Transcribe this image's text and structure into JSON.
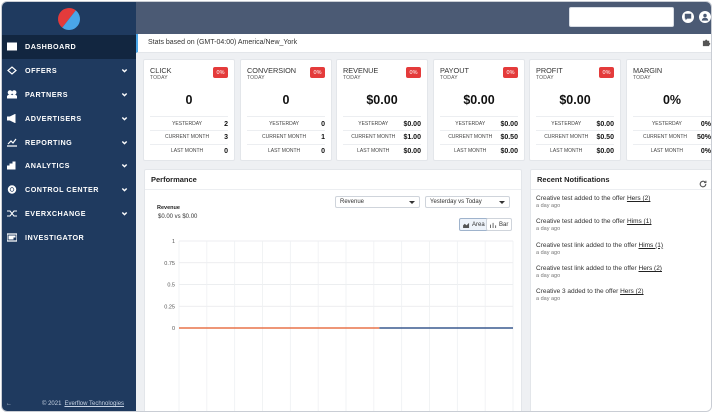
{
  "sidebar": {
    "items": [
      {
        "label": "DASHBOARD",
        "icon": "dashboard-icon",
        "chevron": false
      },
      {
        "label": "OFFERS",
        "icon": "offers-icon",
        "chevron": true
      },
      {
        "label": "PARTNERS",
        "icon": "partners-icon",
        "chevron": true
      },
      {
        "label": "ADVERTISERS",
        "icon": "advertisers-icon",
        "chevron": true
      },
      {
        "label": "REPORTING",
        "icon": "reporting-icon",
        "chevron": true
      },
      {
        "label": "ANALYTICS",
        "icon": "analytics-icon",
        "chevron": true
      },
      {
        "label": "CONTROL CENTER",
        "icon": "gear-icon",
        "chevron": true
      },
      {
        "label": "EVERXCHANGE",
        "icon": "shuffle-icon",
        "chevron": true
      },
      {
        "label": "INVESTIGATOR",
        "icon": "investigator-icon",
        "chevron": false
      }
    ],
    "copyright_prefix": "© 2021",
    "copyright_link": "Everflow Technologies"
  },
  "statsbar": {
    "text": "Stats based on (GMT-04:00) America/New_York"
  },
  "cards": [
    {
      "title": "CLICK",
      "period": "TODAY",
      "badge": "0%",
      "value": "0",
      "rows": [
        {
          "label": "YESTERDAY",
          "value": "2"
        },
        {
          "label": "CURRENT MONTH",
          "value": "3"
        },
        {
          "label": "LAST MONTH",
          "value": "0"
        }
      ]
    },
    {
      "title": "CONVERSION",
      "period": "TODAY",
      "badge": "0%",
      "value": "0",
      "rows": [
        {
          "label": "YESTERDAY",
          "value": "0"
        },
        {
          "label": "CURRENT MONTH",
          "value": "1"
        },
        {
          "label": "LAST MONTH",
          "value": "0"
        }
      ]
    },
    {
      "title": "REVENUE",
      "period": "TODAY",
      "badge": "0%",
      "value": "$0.00",
      "rows": [
        {
          "label": "YESTERDAY",
          "value": "$0.00"
        },
        {
          "label": "CURRENT MONTH",
          "value": "$1.00"
        },
        {
          "label": "LAST MONTH",
          "value": "$0.00"
        }
      ]
    },
    {
      "title": "PAYOUT",
      "period": "TODAY",
      "badge": "0%",
      "value": "$0.00",
      "rows": [
        {
          "label": "YESTERDAY",
          "value": "$0.00"
        },
        {
          "label": "CURRENT MONTH",
          "value": "$0.50"
        },
        {
          "label": "LAST MONTH",
          "value": "$0.00"
        }
      ]
    },
    {
      "title": "PROFIT",
      "period": "TODAY",
      "badge": "0%",
      "value": "$0.00",
      "rows": [
        {
          "label": "YESTERDAY",
          "value": "$0.00"
        },
        {
          "label": "CURRENT MONTH",
          "value": "$0.50"
        },
        {
          "label": "LAST MONTH",
          "value": "$0.00"
        }
      ]
    },
    {
      "title": "MARGIN",
      "period": "TODAY",
      "badge": "",
      "value": "0%",
      "rows": [
        {
          "label": "YESTERDAY",
          "value": "0%"
        },
        {
          "label": "CURRENT MONTH",
          "value": "50%"
        },
        {
          "label": "LAST MONTH",
          "value": "0%"
        }
      ]
    }
  ],
  "performance": {
    "title": "Performance",
    "metric_select": "Revenue",
    "compare_select": "Yesterday vs Today",
    "chart_title": "Revenue",
    "chart_subtitle": "$0.00 vs $0.00",
    "toggle_area": "Area",
    "toggle_bar": "Bar"
  },
  "chart_data": {
    "type": "line",
    "title": "Revenue",
    "yticks": [
      "1",
      "0.75",
      "0.5",
      "0.25",
      "0"
    ],
    "ylim": [
      0,
      1
    ],
    "grid": true,
    "series": [
      {
        "values": [
          0,
          0,
          0,
          0,
          0,
          0,
          0,
          0,
          0,
          0,
          0,
          0,
          0
        ],
        "color": "#e8734a"
      },
      {
        "values": [
          0,
          0,
          0,
          0,
          0,
          0,
          0
        ],
        "color": "#3a5a8f"
      }
    ]
  },
  "notifications": {
    "title": "Recent Notifications",
    "items": [
      {
        "text": "Creative test added to the offer ",
        "link": "Hers (2)",
        "time": "a day ago"
      },
      {
        "text": "Creative test added to the offer ",
        "link": "Hims (1)",
        "time": "a day ago"
      },
      {
        "text": "Creative test link added to the offer ",
        "link": "Hims (1)",
        "time": "a day ago"
      },
      {
        "text": "Creative test link added to the offer ",
        "link": "Hers (2)",
        "time": "a day ago"
      },
      {
        "text": "Creative 3 added to the offer ",
        "link": "Hers (2)",
        "time": "a day ago"
      }
    ]
  },
  "colors": {
    "sidebar": "#1f3a5f",
    "topbar": "#4b5a74",
    "badge": "#e43b3b",
    "line_today": "#e8734a",
    "line_yesterday": "#3a5a8f"
  }
}
